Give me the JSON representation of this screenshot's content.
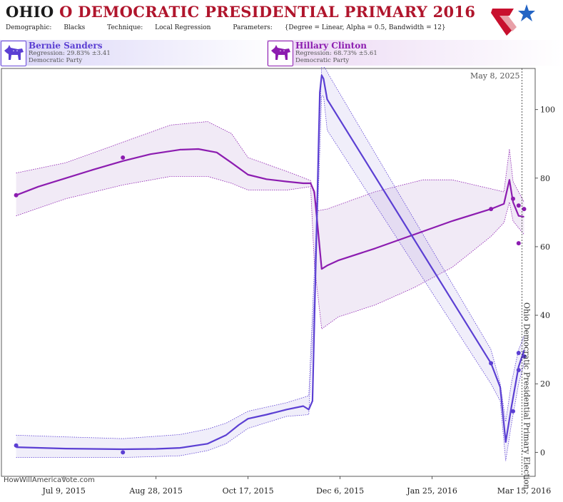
{
  "header": {
    "title_state": "OHIO",
    "title_rest": "O DEMOCRATIC PRESIDENTIAL PRIMARY 2016",
    "demographic_label": "Demographic:",
    "demographic_value": "Blacks",
    "technique_label": "Technique:",
    "technique_value": "Local Regression",
    "parameters_label": "Parameters:",
    "parameters_value": "{Degree = Linear, Alpha = 0.5, Bandwidth = 12}"
  },
  "candidates": [
    {
      "name": "Bernie Sanders",
      "regression": "Regression: 29.83% ±3.41",
      "party": "Democratic Party",
      "color": "#5b3fd3"
    },
    {
      "name": "Hillary Clinton",
      "regression": "Regression: 68.73% ±5.61",
      "party": "Democratic Party",
      "color": "#8c1cb0"
    }
  ],
  "footer": {
    "watermark": "HowWillAmericaVote.com"
  },
  "chart_data": {
    "type": "line",
    "title": "",
    "xlabel": "",
    "ylabel": "",
    "ylim": [
      -7,
      112
    ],
    "xlim": [
      "2015-06-05",
      "2016-03-21"
    ],
    "x_ticks": [
      {
        "date": "2015-07-09",
        "label": "Jul 9, 2015"
      },
      {
        "date": "2015-08-28",
        "label": "Aug 28, 2015"
      },
      {
        "date": "2015-10-17",
        "label": "Oct 17, 2015"
      },
      {
        "date": "2015-12-06",
        "label": "Dec 6, 2015"
      },
      {
        "date": "2016-01-25",
        "label": "Jan 25, 2016"
      },
      {
        "date": "2016-03-15",
        "label": "Mar 15, 2016"
      }
    ],
    "y_ticks": [
      0,
      20,
      40,
      60,
      80,
      100
    ],
    "grid": false,
    "annotations": [
      {
        "date": "2016-03-15",
        "text": "Ohio Democratic Presidential Primary Election"
      },
      {
        "text": "May 8, 2025"
      }
    ],
    "series": [
      {
        "name": "Hillary Clinton",
        "color": "#8c1cb0",
        "line": [
          [
            "2015-06-13",
            75
          ],
          [
            "2015-06-25",
            77.5
          ],
          [
            "2015-07-10",
            80
          ],
          [
            "2015-07-25",
            82.5
          ],
          [
            "2015-08-10",
            85
          ],
          [
            "2015-08-25",
            87
          ],
          [
            "2015-09-10",
            88.3
          ],
          [
            "2015-09-20",
            88.5
          ],
          [
            "2015-09-30",
            87.5
          ],
          [
            "2015-10-08",
            84.5
          ],
          [
            "2015-10-17",
            81
          ],
          [
            "2015-10-27",
            79.7
          ],
          [
            "2015-11-07",
            79
          ],
          [
            "2015-11-16",
            78.5
          ],
          [
            "2015-11-20",
            78.5
          ],
          [
            "2015-11-22",
            76
          ],
          [
            "2015-11-24",
            65
          ],
          [
            "2015-11-26",
            53.5
          ],
          [
            "2015-11-29",
            54.5
          ],
          [
            "2015-12-05",
            56
          ],
          [
            "2015-12-25",
            59.5
          ],
          [
            "2016-01-15",
            63.5
          ],
          [
            "2016-02-05",
            67.5
          ],
          [
            "2016-02-26",
            71
          ],
          [
            "2016-03-04",
            72.5
          ],
          [
            "2016-03-07",
            79.5
          ],
          [
            "2016-03-09",
            73
          ],
          [
            "2016-03-12",
            69
          ],
          [
            "2016-03-15",
            68.7
          ]
        ],
        "upper": [
          [
            "2015-06-13",
            81.5
          ],
          [
            "2015-07-10",
            84.5
          ],
          [
            "2015-08-10",
            90.5
          ],
          [
            "2015-09-05",
            95.5
          ],
          [
            "2015-09-25",
            96.5
          ],
          [
            "2015-10-08",
            93
          ],
          [
            "2015-10-17",
            86
          ],
          [
            "2015-11-07",
            82
          ],
          [
            "2015-11-20",
            79.3
          ],
          [
            "2015-11-24",
            70.5
          ],
          [
            "2015-11-29",
            71
          ],
          [
            "2015-12-25",
            76
          ],
          [
            "2016-01-20",
            79.5
          ],
          [
            "2016-02-05",
            79.5
          ],
          [
            "2016-03-04",
            76
          ],
          [
            "2016-03-07",
            88.5
          ],
          [
            "2016-03-09",
            79
          ],
          [
            "2016-03-15",
            73
          ]
        ],
        "lower": [
          [
            "2015-06-13",
            69
          ],
          [
            "2015-07-10",
            74
          ],
          [
            "2015-08-10",
            78
          ],
          [
            "2015-09-05",
            80.5
          ],
          [
            "2015-09-25",
            80.5
          ],
          [
            "2015-10-08",
            78.5
          ],
          [
            "2015-10-17",
            76.5
          ],
          [
            "2015-11-07",
            76.5
          ],
          [
            "2015-11-20",
            77.5
          ],
          [
            "2015-11-22",
            55
          ],
          [
            "2015-11-26",
            36
          ],
          [
            "2015-12-05",
            39.5
          ],
          [
            "2015-12-25",
            43
          ],
          [
            "2016-01-15",
            48
          ],
          [
            "2016-02-05",
            54
          ],
          [
            "2016-02-26",
            63
          ],
          [
            "2016-03-04",
            67
          ],
          [
            "2016-03-07",
            73
          ],
          [
            "2016-03-09",
            67.5
          ],
          [
            "2016-03-15",
            63.5
          ]
        ],
        "points": [
          [
            "2015-06-13",
            75
          ],
          [
            "2015-08-10",
            86
          ],
          [
            "2016-02-26",
            71
          ],
          [
            "2016-03-09",
            74
          ],
          [
            "2016-03-12",
            72
          ],
          [
            "2016-03-12",
            61
          ],
          [
            "2016-03-15",
            71
          ]
        ]
      },
      {
        "name": "Bernie Sanders",
        "color": "#5b3fd3",
        "line": [
          [
            "2015-06-13",
            1.5
          ],
          [
            "2015-07-10",
            1.1
          ],
          [
            "2015-08-10",
            0.9
          ],
          [
            "2015-08-28",
            1
          ],
          [
            "2015-09-10",
            1.3
          ],
          [
            "2015-09-25",
            2.5
          ],
          [
            "2015-10-05",
            5
          ],
          [
            "2015-10-12",
            8
          ],
          [
            "2015-10-17",
            9.8
          ],
          [
            "2015-10-27",
            11
          ],
          [
            "2015-11-07",
            12.5
          ],
          [
            "2015-11-16",
            13.5
          ],
          [
            "2015-11-19",
            12.5
          ],
          [
            "2015-11-21",
            15
          ],
          [
            "2015-11-23",
            60
          ],
          [
            "2015-11-25",
            105
          ],
          [
            "2015-11-26",
            110
          ],
          [
            "2015-11-27",
            109
          ],
          [
            "2015-11-29",
            103
          ],
          [
            "2016-02-26",
            26
          ],
          [
            "2016-03-02",
            19
          ],
          [
            "2016-03-05",
            3
          ],
          [
            "2016-03-08",
            13
          ],
          [
            "2016-03-12",
            25
          ],
          [
            "2016-03-15",
            29.8
          ]
        ],
        "upper": [
          [
            "2015-06-13",
            5
          ],
          [
            "2015-07-10",
            4.5
          ],
          [
            "2015-08-10",
            4
          ],
          [
            "2015-09-10",
            5.2
          ],
          [
            "2015-09-25",
            6.8
          ],
          [
            "2015-10-05",
            8.5
          ],
          [
            "2015-10-17",
            12
          ],
          [
            "2015-11-07",
            14.5
          ],
          [
            "2015-11-19",
            16.5
          ],
          [
            "2015-11-23",
            65
          ],
          [
            "2015-11-26",
            113
          ],
          [
            "2015-11-28",
            112
          ],
          [
            "2015-11-30",
            110
          ],
          [
            "2016-02-26",
            30
          ],
          [
            "2016-03-02",
            20
          ],
          [
            "2016-03-05",
            9
          ],
          [
            "2016-03-08",
            20
          ],
          [
            "2016-03-12",
            30
          ],
          [
            "2016-03-15",
            34
          ]
        ],
        "lower": [
          [
            "2015-06-13",
            -1.5
          ],
          [
            "2015-07-10",
            -1.5
          ],
          [
            "2015-08-10",
            -1.5
          ],
          [
            "2015-09-10",
            -1
          ],
          [
            "2015-09-25",
            0.5
          ],
          [
            "2015-10-05",
            2.5
          ],
          [
            "2015-10-17",
            7
          ],
          [
            "2015-11-07",
            10.5
          ],
          [
            "2015-11-19",
            11
          ],
          [
            "2015-11-23",
            57
          ],
          [
            "2015-11-26",
            104
          ],
          [
            "2015-11-27",
            104
          ],
          [
            "2015-11-29",
            94
          ],
          [
            "2016-02-26",
            20
          ],
          [
            "2016-03-02",
            15
          ],
          [
            "2016-03-05",
            -2.5
          ],
          [
            "2016-03-08",
            8
          ],
          [
            "2016-03-12",
            20
          ],
          [
            "2016-03-15",
            26
          ]
        ],
        "points": [
          [
            "2015-06-13",
            2
          ],
          [
            "2015-08-10",
            0
          ],
          [
            "2016-02-26",
            26
          ],
          [
            "2016-03-09",
            12
          ],
          [
            "2016-03-12",
            24
          ],
          [
            "2016-03-12",
            29
          ],
          [
            "2016-03-15",
            28
          ]
        ]
      }
    ]
  }
}
